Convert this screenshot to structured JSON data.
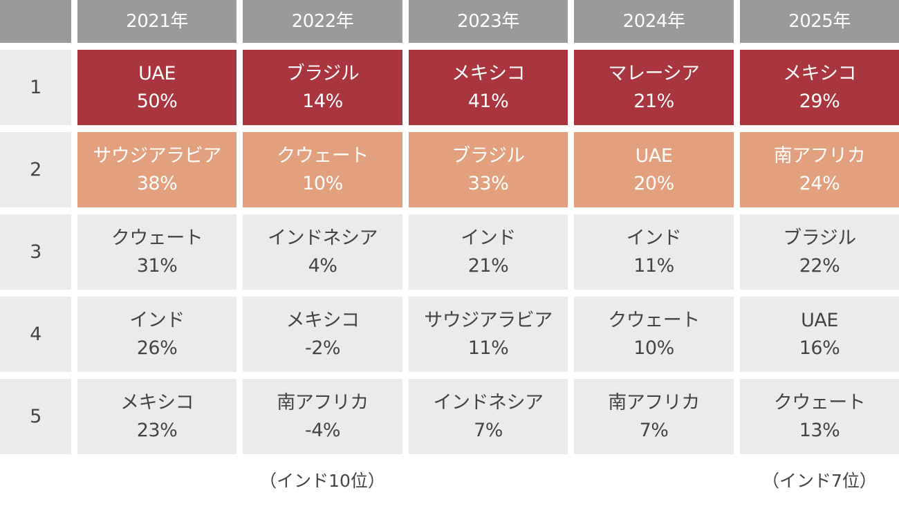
{
  "chart_data": {
    "type": "table",
    "columns": [
      "2021年",
      "2022年",
      "2023年",
      "2024年",
      "2025年"
    ],
    "ranks": [
      "1",
      "2",
      "3",
      "4",
      "5"
    ],
    "cells": [
      [
        {
          "name": "UAE",
          "value": "50%"
        },
        {
          "name": "ブラジル",
          "value": "14%"
        },
        {
          "name": "メキシコ",
          "value": "41%"
        },
        {
          "name": "マレーシア",
          "value": "21%"
        },
        {
          "name": "メキシコ",
          "value": "29%"
        }
      ],
      [
        {
          "name": "サウジアラビア",
          "value": "38%"
        },
        {
          "name": "クウェート",
          "value": "10%"
        },
        {
          "name": "ブラジル",
          "value": "33%"
        },
        {
          "name": "UAE",
          "value": "20%"
        },
        {
          "name": "南アフリカ",
          "value": "24%"
        }
      ],
      [
        {
          "name": "クウェート",
          "value": "31%"
        },
        {
          "name": "インドネシア",
          "value": "4%"
        },
        {
          "name": "インド",
          "value": "21%"
        },
        {
          "name": "インド",
          "value": "11%"
        },
        {
          "name": "ブラジル",
          "value": "22%"
        }
      ],
      [
        {
          "name": "インド",
          "value": "26%"
        },
        {
          "name": "メキシコ",
          "value": "-2%"
        },
        {
          "name": "サウジアラビア",
          "value": "11%"
        },
        {
          "name": "クウェート",
          "value": "10%"
        },
        {
          "name": "UAE",
          "value": "16%"
        }
      ],
      [
        {
          "name": "メキシコ",
          "value": "23%"
        },
        {
          "name": "南アフリカ",
          "value": "-4%"
        },
        {
          "name": "インドネシア",
          "value": "7%"
        },
        {
          "name": "南アフリカ",
          "value": "7%"
        },
        {
          "name": "クウェート",
          "value": "13%"
        }
      ]
    ],
    "notes": [
      {
        "column": "2022年",
        "text": "（インド10位）"
      },
      {
        "column": "2025年",
        "text": "（インド7位）"
      }
    ],
    "colors": {
      "header": "#9a9a9a",
      "rank1": "#a9363f",
      "rank2": "#e3a07e",
      "other": "#ebebeb"
    }
  }
}
